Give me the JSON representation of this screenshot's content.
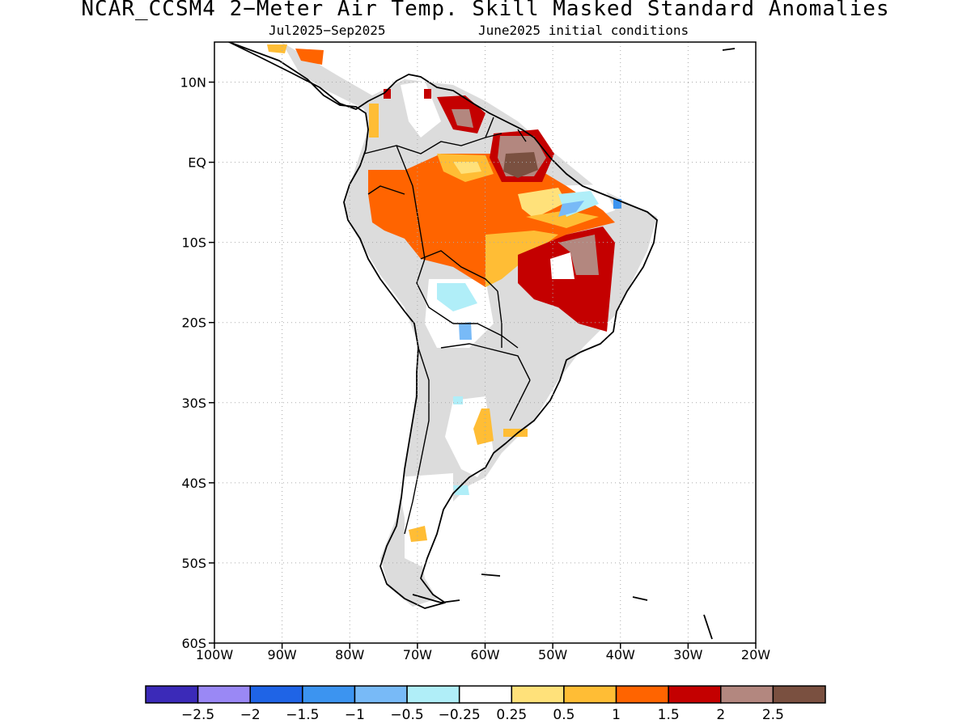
{
  "header": {
    "title": "NCAR_CCSM4 2−Meter Air Temp. Skill Masked Standard Anomalies",
    "period": "Jul2025−Sep2025",
    "initial_conditions": "June2025 initial conditions"
  },
  "map": {
    "lat_labels": [
      "10N",
      "EQ",
      "10S",
      "20S",
      "30S",
      "40S",
      "50S",
      "60S"
    ],
    "lon_labels": [
      "100W",
      "90W",
      "80W",
      "70W",
      "60W",
      "50W",
      "40W",
      "30W",
      "20W"
    ],
    "lon_range": [
      -100,
      -20
    ],
    "lat_range": [
      -60,
      15
    ],
    "grid": "dotted"
  },
  "colorbar": {
    "colors": [
      "#3b2ab8",
      "#9a88f5",
      "#1f64e6",
      "#3c94f0",
      "#78baf7",
      "#b0eef8",
      "#ffffff",
      "#ffe17a",
      "#ffbd35",
      "#ff6400",
      "#c40000",
      "#b3877f",
      "#7a5040"
    ],
    "labels": [
      "−2.5",
      "−2",
      "−1.5",
      "−1",
      "−0.5",
      "−0.25",
      "0.25",
      "0.5",
      "1",
      "1.5",
      "2",
      "2.5"
    ]
  },
  "colors": {
    "land_grey": "#dcdcdc",
    "coast": "#000000"
  }
}
